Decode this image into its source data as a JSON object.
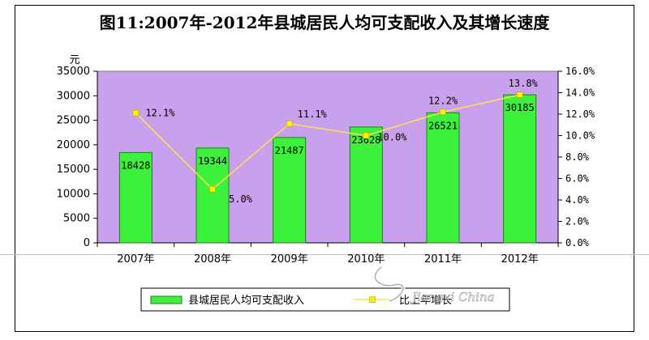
{
  "colors": {
    "plot_bg": "#C8A0EE",
    "bar": "#3CF03C",
    "bar_edge": "#1E7F1E",
    "line": "#FFE34D",
    "marker": "#FFF200"
  },
  "chart_data": {
    "type": "bar",
    "title": "图11:2007年-2012年县城居民人均可支配收入及其增长速度",
    "categories": [
      "2007年",
      "2008年",
      "2009年",
      "2010年",
      "2011年",
      "2012年"
    ],
    "ylabel": "元",
    "ylim": [
      0,
      35000
    ],
    "yticks": [
      0,
      5000,
      10000,
      15000,
      20000,
      25000,
      30000,
      35000
    ],
    "y2lim": [
      0,
      16
    ],
    "y2ticks": [
      "0.0%",
      "2.0%",
      "4.0%",
      "6.0%",
      "8.0%",
      "10.0%",
      "12.0%",
      "14.0%",
      "16.0%"
    ],
    "grid": false,
    "legend_position": "bottom",
    "series": [
      {
        "name": "县城居民人均可支配收入",
        "type": "bar",
        "axis": "left",
        "values": [
          18428,
          19344,
          21487,
          23628,
          26521,
          30185
        ],
        "labels": [
          "18428",
          "19344",
          "21487",
          "23628",
          "26521",
          "30185"
        ]
      },
      {
        "name": "比上年增长",
        "type": "line",
        "axis": "right",
        "values": [
          12.1,
          5.0,
          11.1,
          10.0,
          12.2,
          13.8
        ],
        "labels": [
          "12.1%",
          "5.0%",
          "11.1%",
          "10.0%",
          "12.2%",
          "13.8%"
        ]
      }
    ]
  },
  "watermark": {
    "text": "Jiangxi China"
  }
}
